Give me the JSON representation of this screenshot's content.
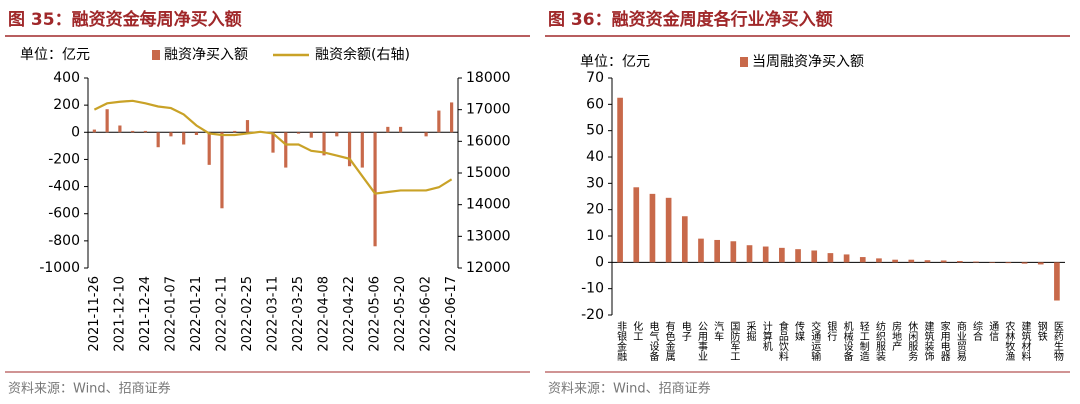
{
  "chart_data": [
    {
      "type": "bar_line",
      "title": "图 35：融资资金每周净买入额",
      "unit": "单位：亿元",
      "categories": [
        "2021-11-26",
        null,
        "2021-12-10",
        null,
        "2021-12-24",
        null,
        "2022-01-07",
        null,
        "2022-01-21",
        null,
        "2022-02-11",
        null,
        "2022-02-25",
        null,
        "2022-03-11",
        null,
        "2022-03-25",
        null,
        "2022-04-08",
        null,
        "2022-04-22",
        null,
        "2022-05-06",
        null,
        "2022-05-20",
        null,
        "2022-06-02",
        null,
        "2022-06-17"
      ],
      "series": [
        {
          "name": "融资净买入额",
          "type": "bar",
          "color": "#c8694a",
          "values": [
            20,
            170,
            50,
            10,
            10,
            -110,
            -30,
            -90,
            -20,
            -240,
            -560,
            10,
            90,
            0,
            -150,
            -260,
            -10,
            -40,
            -170,
            -30,
            -250,
            -260,
            -840,
            40,
            40,
            0,
            -30,
            160,
            220
          ]
        },
        {
          "name": "融资余额(右轴)",
          "type": "line",
          "axis": "y2",
          "color": "#c9a227",
          "values": [
            17000,
            17200,
            17250,
            17280,
            17200,
            17100,
            17050,
            16850,
            16500,
            16250,
            16200,
            16200,
            16250,
            16300,
            16250,
            15900,
            15900,
            15700,
            15650,
            15550,
            15450,
            14900,
            14350,
            14400,
            14450,
            14450,
            14450,
            14550,
            14800
          ]
        }
      ],
      "ylim": [
        -1000,
        400
      ],
      "yticks": [
        -1000,
        -800,
        -600,
        -400,
        -200,
        0,
        200,
        400
      ],
      "y2lim": [
        12000,
        18000
      ],
      "y2ticks": [
        12000,
        13000,
        14000,
        15000,
        16000,
        17000,
        18000
      ],
      "source": "资料来源：Wind、招商证券"
    },
    {
      "type": "bar",
      "title": "图 36：融资资金周度各行业净买入额",
      "unit": "单位：亿元",
      "categories": [
        "非银金融",
        "化工",
        "电气设备",
        "有色金属",
        "电子",
        "公用事业",
        "汽车",
        "国防军工",
        "采掘",
        "计算机",
        "食品饮料",
        "传媒",
        "交通运输",
        "银行",
        "机械设备",
        "轻工制造",
        "纺织服装",
        "房地产",
        "休闲服务",
        "建筑装饰",
        "家用电器",
        "商业贸易",
        "综合",
        "通信",
        "农林牧渔",
        "建筑材料",
        "钢铁",
        "医药生物"
      ],
      "series": [
        {
          "name": "当周融资净买入额",
          "color": "#c8694a",
          "values": [
            62.5,
            28.5,
            26,
            24.5,
            17.5,
            9,
            8.5,
            8,
            6.5,
            6,
            5.5,
            5,
            4.5,
            3.5,
            3,
            2,
            1.5,
            1,
            1,
            0.8,
            0.7,
            0.5,
            0.3,
            -0.2,
            -0.3,
            -0.5,
            -0.8,
            -14.5
          ]
        }
      ],
      "ylim": [
        -20,
        70
      ],
      "yticks": [
        -20,
        -10,
        0,
        10,
        20,
        30,
        40,
        50,
        60,
        70
      ],
      "source": "资料来源：Wind、招商证券"
    }
  ]
}
